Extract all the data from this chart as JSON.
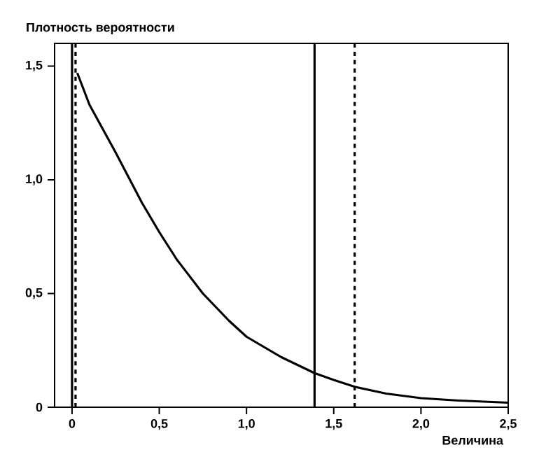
{
  "chart_data": {
    "type": "line",
    "ylabel": "Плотность вероятности",
    "xlabel": "Величина",
    "x": [
      0.03,
      0.1,
      0.25,
      0.4,
      0.5,
      0.6,
      0.75,
      0.9,
      1.0,
      1.2,
      1.39,
      1.5,
      1.62,
      1.8,
      2.0,
      2.2,
      2.5
    ],
    "series": [
      {
        "color": "#000000",
        "values": [
          1.47,
          1.33,
          1.12,
          0.9,
          0.77,
          0.65,
          0.5,
          0.38,
          0.31,
          0.22,
          0.15,
          0.12,
          0.09,
          0.06,
          0.04,
          0.03,
          0.02
        ]
      }
    ],
    "xlim": [
      -0.1,
      2.5
    ],
    "ylim": [
      0,
      1.6
    ],
    "xticks": [
      0,
      {
        "value": 0.5,
        "label": "0,5"
      },
      {
        "value": 1.0,
        "label": "1,0"
      },
      {
        "value": 1.5,
        "label": "1,5"
      },
      {
        "value": 2.0,
        "label": "2,0"
      },
      {
        "value": 2.5,
        "label": "2,5"
      }
    ],
    "yticks": [
      0,
      {
        "value": 0.5,
        "label": "0,5"
      },
      {
        "value": 1.0,
        "label": "1,0"
      },
      {
        "value": 1.5,
        "label": "1,5"
      }
    ],
    "ref_lines": [
      {
        "axis": "x",
        "value": 0,
        "line_style": "solid"
      },
      {
        "axis": "x",
        "value": 0.02,
        "line_style": "dashed"
      },
      {
        "axis": "x",
        "value": 1.39,
        "line_style": "solid"
      },
      {
        "axis": "x",
        "value": 1.62,
        "line_style": "dashed"
      }
    ],
    "marker": "none",
    "line_style": "solid"
  }
}
